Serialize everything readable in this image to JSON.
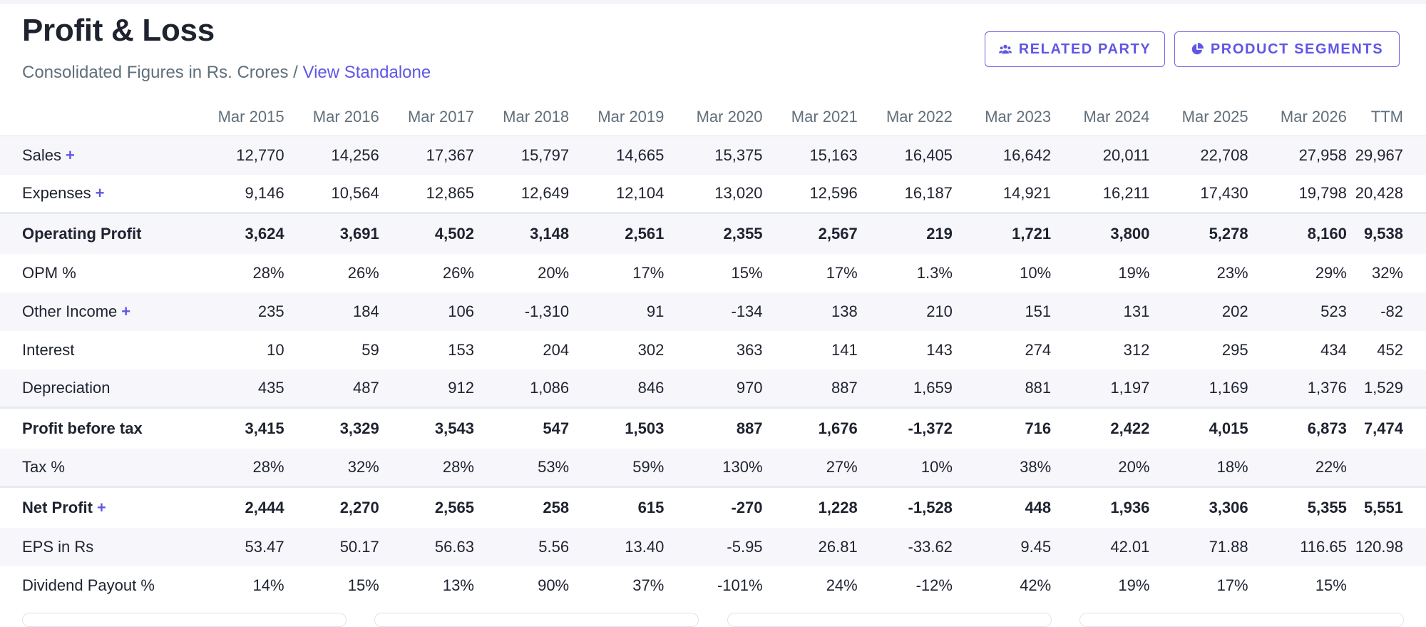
{
  "header": {
    "title": "Profit & Loss",
    "subtitle_prefix": "Consolidated Figures in Rs. Crores / ",
    "subtitle_link": "View Standalone"
  },
  "buttons": {
    "related_party": "RELATED PARTY",
    "product_segments": "PRODUCT SEGMENTS"
  },
  "columns": [
    "Mar 2015",
    "Mar 2016",
    "Mar 2017",
    "Mar 2018",
    "Mar 2019",
    "Mar 2020",
    "Mar 2021",
    "Mar 2022",
    "Mar 2023",
    "Mar 2024",
    "Mar 2025",
    "Mar 2026",
    "TTM"
  ],
  "rows": [
    {
      "label": "Sales",
      "expandable": true,
      "bold": false,
      "values": [
        "12,770",
        "14,256",
        "17,367",
        "15,797",
        "14,665",
        "15,375",
        "15,163",
        "16,405",
        "16,642",
        "20,011",
        "22,708",
        "27,958",
        "29,967"
      ]
    },
    {
      "label": "Expenses",
      "expandable": true,
      "bold": false,
      "values": [
        "9,146",
        "10,564",
        "12,865",
        "12,649",
        "12,104",
        "13,020",
        "12,596",
        "16,187",
        "14,921",
        "16,211",
        "17,430",
        "19,798",
        "20,428"
      ]
    },
    {
      "label": "Operating Profit",
      "expandable": false,
      "bold": true,
      "values": [
        "3,624",
        "3,691",
        "4,502",
        "3,148",
        "2,561",
        "2,355",
        "2,567",
        "219",
        "1,721",
        "3,800",
        "5,278",
        "8,160",
        "9,538"
      ]
    },
    {
      "label": "OPM %",
      "expandable": false,
      "bold": false,
      "values": [
        "28%",
        "26%",
        "26%",
        "20%",
        "17%",
        "15%",
        "17%",
        "1.3%",
        "10%",
        "19%",
        "23%",
        "29%",
        "32%"
      ]
    },
    {
      "label": "Other Income",
      "expandable": true,
      "bold": false,
      "values": [
        "235",
        "184",
        "106",
        "-1,310",
        "91",
        "-134",
        "138",
        "210",
        "151",
        "131",
        "202",
        "523",
        "-82"
      ]
    },
    {
      "label": "Interest",
      "expandable": false,
      "bold": false,
      "values": [
        "10",
        "59",
        "153",
        "204",
        "302",
        "363",
        "141",
        "143",
        "274",
        "312",
        "295",
        "434",
        "452"
      ]
    },
    {
      "label": "Depreciation",
      "expandable": false,
      "bold": false,
      "values": [
        "435",
        "487",
        "912",
        "1,086",
        "846",
        "970",
        "887",
        "1,659",
        "881",
        "1,197",
        "1,169",
        "1,376",
        "1,529"
      ]
    },
    {
      "label": "Profit before tax",
      "expandable": false,
      "bold": true,
      "values": [
        "3,415",
        "3,329",
        "3,543",
        "547",
        "1,503",
        "887",
        "1,676",
        "-1,372",
        "716",
        "2,422",
        "4,015",
        "6,873",
        "7,474"
      ]
    },
    {
      "label": "Tax %",
      "expandable": false,
      "bold": false,
      "values": [
        "28%",
        "32%",
        "28%",
        "53%",
        "59%",
        "130%",
        "27%",
        "10%",
        "38%",
        "20%",
        "18%",
        "22%",
        ""
      ]
    },
    {
      "label": "Net Profit",
      "expandable": true,
      "bold": true,
      "values": [
        "2,444",
        "2,270",
        "2,565",
        "258",
        "615",
        "-270",
        "1,228",
        "-1,528",
        "448",
        "1,936",
        "3,306",
        "5,355",
        "5,551"
      ]
    },
    {
      "label": "EPS in Rs",
      "expandable": false,
      "bold": false,
      "values": [
        "53.47",
        "50.17",
        "56.63",
        "5.56",
        "13.40",
        "-5.95",
        "26.81",
        "-33.62",
        "9.45",
        "42.01",
        "71.88",
        "116.65",
        "120.98"
      ]
    },
    {
      "label": "Dividend Payout %",
      "expandable": false,
      "bold": false,
      "values": [
        "14%",
        "15%",
        "13%",
        "90%",
        "37%",
        "-101%",
        "24%",
        "-12%",
        "42%",
        "19%",
        "17%",
        "15%",
        ""
      ]
    }
  ],
  "plus_symbol": "+",
  "colors": {
    "accent": "#6056e4",
    "text": "#1f2330",
    "muted": "#606f7b",
    "row_alt": "#f6f6fb"
  },
  "icons": {
    "related_party": "users-icon",
    "product_segments": "pie-chart-icon"
  }
}
